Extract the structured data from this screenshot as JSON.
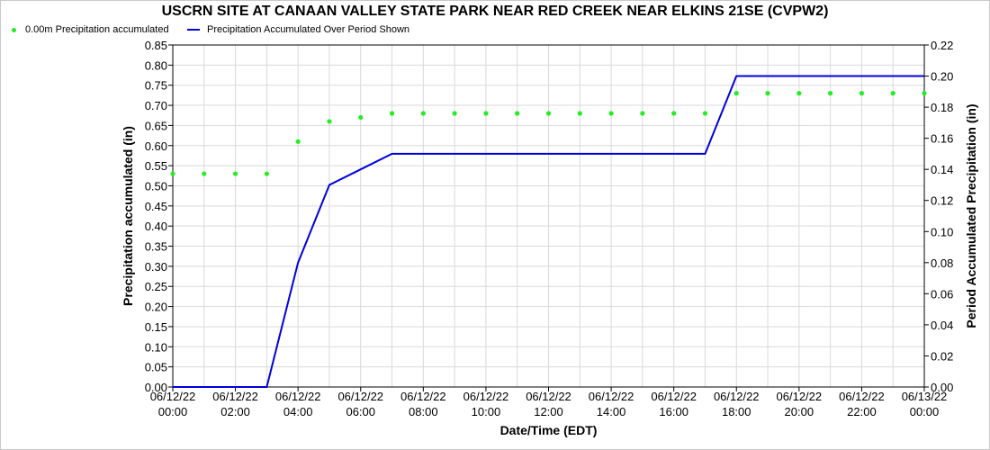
{
  "chart_data": {
    "type": "line",
    "title": "USCRN SITE AT CANAAN VALLEY STATE PARK NEAR RED CREEK NEAR ELKINS 21SE (CVPW2)",
    "xlabel": "Date/Time (EDT)",
    "ylabel_left": "Precipitation accumulated (in)",
    "ylabel_right": "Period Accumulated Precipitation (in)",
    "ylim_left": [
      0,
      0.85
    ],
    "ylim_right": [
      0,
      0.22
    ],
    "yticks_left": [
      "0.00",
      "0.05",
      "0.10",
      "0.15",
      "0.20",
      "0.25",
      "0.30",
      "0.35",
      "0.40",
      "0.45",
      "0.50",
      "0.55",
      "0.60",
      "0.65",
      "0.70",
      "0.75",
      "0.80",
      "0.85"
    ],
    "yticks_right": [
      "0.00",
      "0.02",
      "0.04",
      "0.06",
      "0.08",
      "0.10",
      "0.12",
      "0.14",
      "0.16",
      "0.18",
      "0.20",
      "0.22"
    ],
    "x_ticks": [
      {
        "hour": 0,
        "date": "06/12/22",
        "time": "00:00"
      },
      {
        "hour": 2,
        "date": "06/12/22",
        "time": "02:00"
      },
      {
        "hour": 4,
        "date": "06/12/22",
        "time": "04:00"
      },
      {
        "hour": 6,
        "date": "06/12/22",
        "time": "06:00"
      },
      {
        "hour": 8,
        "date": "06/12/22",
        "time": "08:00"
      },
      {
        "hour": 10,
        "date": "06/12/22",
        "time": "10:00"
      },
      {
        "hour": 12,
        "date": "06/12/22",
        "time": "12:00"
      },
      {
        "hour": 14,
        "date": "06/12/22",
        "time": "14:00"
      },
      {
        "hour": 16,
        "date": "06/12/22",
        "time": "16:00"
      },
      {
        "hour": 18,
        "date": "06/12/22",
        "time": "18:00"
      },
      {
        "hour": 20,
        "date": "06/12/22",
        "time": "20:00"
      },
      {
        "hour": 22,
        "date": "06/12/22",
        "time": "22:00"
      },
      {
        "hour": 24,
        "date": "06/13/22",
        "time": "00:00"
      }
    ],
    "x_range_hours": [
      0,
      24
    ],
    "grid": true,
    "legend_position": "top-left",
    "series": [
      {
        "name": "0.00m Precipitation accumulated",
        "axis": "left",
        "style": "scatter",
        "color": "#22ee22",
        "x": [
          0,
          1,
          2,
          3,
          4,
          5,
          6,
          7,
          8,
          9,
          10,
          11,
          12,
          13,
          14,
          15,
          16,
          17,
          18,
          19,
          20,
          21,
          22,
          23,
          24
        ],
        "values": [
          0.53,
          0.53,
          0.53,
          0.53,
          0.61,
          0.66,
          0.67,
          0.68,
          0.68,
          0.68,
          0.68,
          0.68,
          0.68,
          0.68,
          0.68,
          0.68,
          0.68,
          0.68,
          0.73,
          0.73,
          0.73,
          0.73,
          0.73,
          0.73,
          0.73
        ]
      },
      {
        "name": "Precipitation Accumulated Over Period Shown",
        "axis": "right",
        "style": "line",
        "color": "#0000dd",
        "x": [
          0,
          1,
          2,
          3,
          4,
          5,
          6,
          7,
          8,
          9,
          10,
          11,
          12,
          13,
          14,
          15,
          16,
          17,
          18,
          19,
          20,
          21,
          22,
          23,
          24
        ],
        "values": [
          0,
          0,
          0,
          0,
          0.08,
          0.13,
          0.14,
          0.15,
          0.15,
          0.15,
          0.15,
          0.15,
          0.15,
          0.15,
          0.15,
          0.15,
          0.15,
          0.15,
          0.2,
          0.2,
          0.2,
          0.2,
          0.2,
          0.2,
          0.2
        ]
      }
    ]
  }
}
